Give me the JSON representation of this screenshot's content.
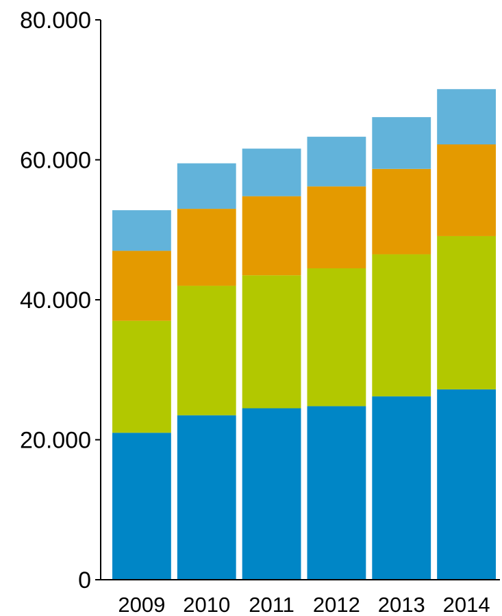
{
  "chart_data": {
    "type": "bar",
    "stacked": true,
    "categories": [
      "2009",
      "2010",
      "2011",
      "2012",
      "2013",
      "2014"
    ],
    "series": [
      {
        "values": [
          21000,
          23500,
          24500,
          24800,
          26200,
          27200
        ],
        "color": "#0086C6"
      },
      {
        "values": [
          16000,
          18500,
          19000,
          19700,
          20300,
          21900
        ],
        "color": "#B2C800"
      },
      {
        "values": [
          10000,
          11000,
          11300,
          11700,
          12200,
          13100
        ],
        "color": "#E49A00"
      },
      {
        "values": [
          5800,
          6500,
          6800,
          7100,
          7400,
          7900
        ],
        "color": "#62B3DA"
      }
    ],
    "y_ticks": [
      0,
      20000,
      40000,
      60000,
      80000
    ],
    "y_tick_labels": [
      "0",
      "20.000",
      "40.000",
      "60.000",
      "80.000"
    ],
    "ylim": [
      0,
      80000
    ],
    "grid": false,
    "legend": "none"
  }
}
